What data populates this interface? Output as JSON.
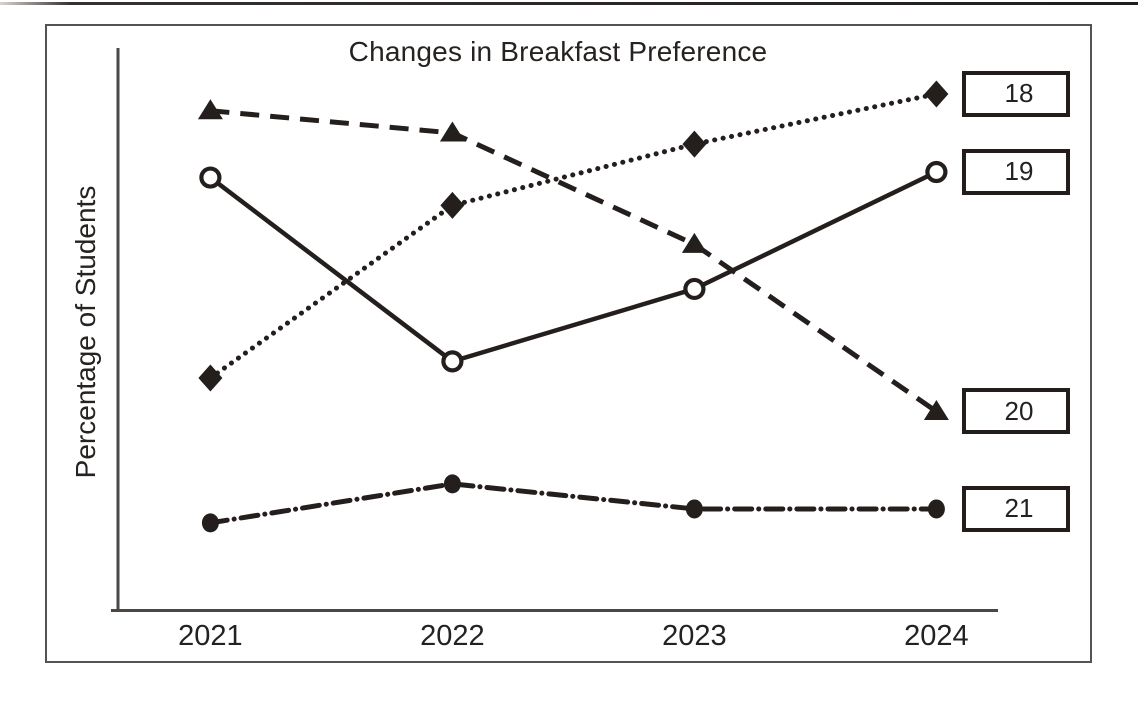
{
  "page": {
    "background": "#ffffff",
    "ink_color": "#241f1d",
    "frame_color": "#565250",
    "axis_color": "#4a4745"
  },
  "chart_data": {
    "type": "line",
    "title": "Changes in Breakfast Preference",
    "ylabel": "Percentage of Students",
    "xlabel": "",
    "categories": [
      "2021",
      "2022",
      "2023",
      "2024"
    ],
    "grid": false,
    "y_axis_note": "no numeric ticks or gridlines shown; series values are estimated as percent of axis height",
    "ylim": [
      0,
      100
    ],
    "legend_position": "boxed labels at right end of each line",
    "series": [
      {
        "label": "18",
        "marker": "filled-diamond",
        "line_style": "dotted",
        "values": [
          42,
          73,
          84,
          93
        ]
      },
      {
        "label": "19",
        "marker": "open-circle",
        "line_style": "solid",
        "values": [
          78,
          45,
          58,
          79
        ]
      },
      {
        "label": "20",
        "marker": "filled-triangle",
        "line_style": "dashed",
        "values": [
          90,
          86,
          66,
          36
        ]
      },
      {
        "label": "21",
        "marker": "filled-circle",
        "line_style": "dash-dot",
        "values": [
          16,
          23,
          18.5,
          18.5
        ]
      }
    ]
  }
}
